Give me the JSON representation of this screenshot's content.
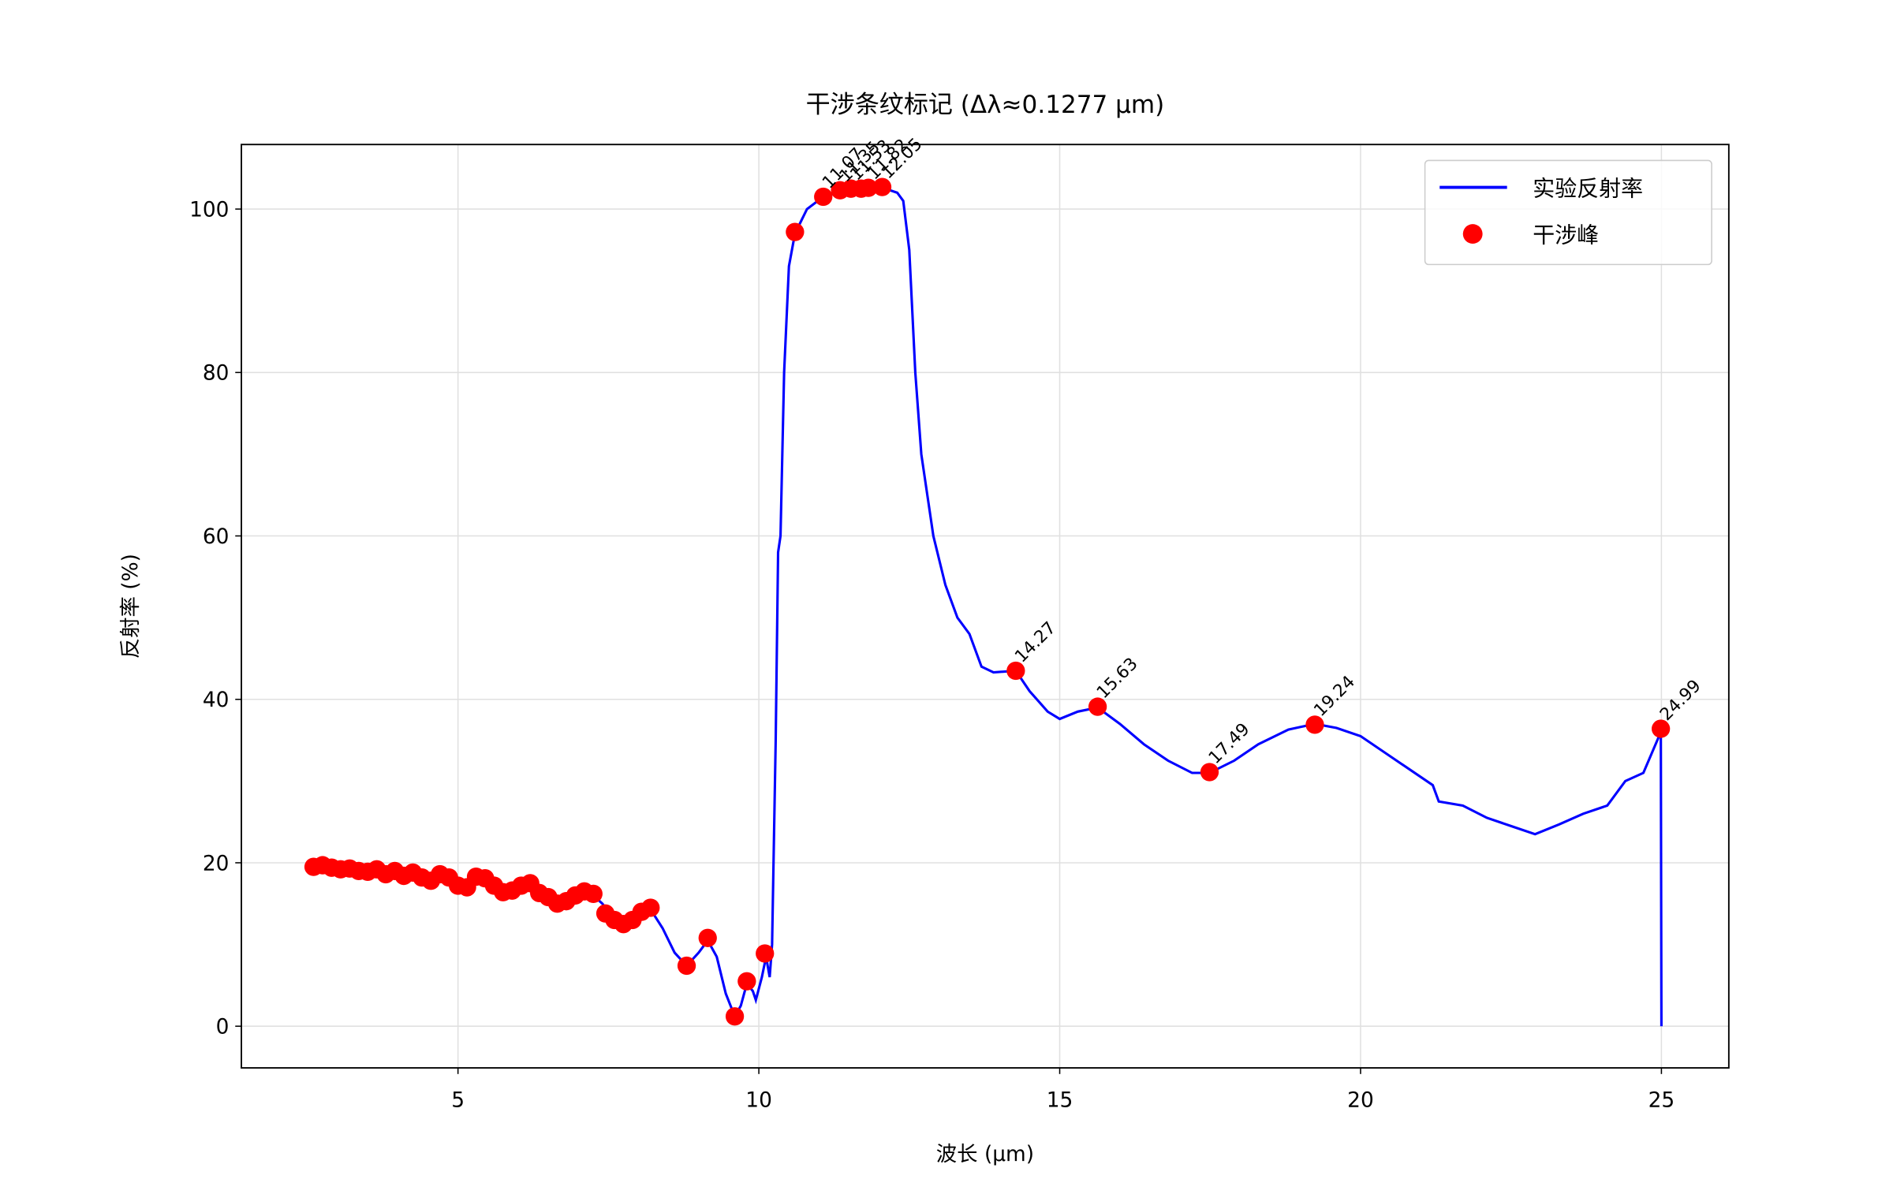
{
  "chart_data": {
    "type": "line",
    "title": "干涉条纹标记 (Δλ≈0.1277 μm)",
    "x_label": "波长 (μm)",
    "y_label": "反射率 (%)",
    "xlim": [
      1.4,
      26.12
    ],
    "ylim": [
      -5.1,
      107.9
    ],
    "xticks": [
      5,
      10,
      15,
      20,
      25
    ],
    "yticks": [
      0,
      20,
      40,
      60,
      80,
      100
    ],
    "grid": true,
    "legend": "upper right",
    "series": [
      {
        "name": "实验反射率",
        "type": "line",
        "color": "#0000ff",
        "x": [
          2.6,
          2.7,
          2.8,
          2.9,
          3.0,
          3.2,
          3.4,
          3.6,
          3.8,
          4.0,
          4.2,
          4.4,
          4.6,
          4.8,
          5.0,
          5.2,
          5.4,
          5.6,
          5.8,
          6.0,
          6.2,
          6.4,
          6.6,
          6.8,
          7.0,
          7.2,
          7.4,
          7.6,
          7.8,
          8.0,
          8.2,
          8.4,
          8.6,
          8.8,
          9.0,
          9.15,
          9.3,
          9.45,
          9.6,
          9.7,
          9.8,
          9.9,
          9.95,
          10.05,
          10.12,
          10.18,
          10.22,
          10.28,
          10.32,
          10.36,
          10.42,
          10.5,
          10.6,
          10.8,
          11.07,
          11.3,
          11.6,
          11.9,
          12.1,
          12.3,
          12.4,
          12.5,
          12.6,
          12.7,
          12.9,
          13.1,
          13.3,
          13.5,
          13.7,
          13.9,
          14.27,
          14.5,
          14.8,
          15.0,
          15.3,
          15.63,
          16.0,
          16.4,
          16.8,
          17.2,
          17.49,
          17.9,
          18.3,
          18.8,
          19.24,
          19.6,
          20.0,
          20.4,
          20.8,
          21.2,
          21.3,
          21.7,
          22.1,
          22.5,
          22.9,
          23.3,
          23.7,
          24.1,
          24.4,
          24.7,
          24.99,
          25.0
        ],
        "values": [
          19.5,
          19.0,
          19.6,
          18.9,
          19.4,
          18.8,
          19.2,
          18.5,
          19.1,
          18.2,
          18.7,
          17.9,
          18.2,
          18.5,
          17.2,
          17.5,
          18.3,
          17.5,
          16.3,
          16.8,
          17.3,
          16.0,
          15.5,
          15.0,
          16.0,
          16.3,
          15.0,
          13.0,
          12.6,
          13.6,
          14.3,
          12.0,
          9.0,
          7.4,
          9.0,
          10.5,
          8.5,
          4.0,
          1.2,
          2.5,
          5.2,
          4.3,
          3.2,
          6.0,
          8.5,
          6.0,
          10.0,
          35,
          58,
          60,
          80,
          93,
          97,
          100,
          101.5,
          102,
          102.3,
          102.4,
          102.5,
          102,
          101,
          95,
          80,
          70,
          60,
          54,
          50,
          48,
          44,
          43.3,
          43.5,
          41,
          38.5,
          37.6,
          38.5,
          39,
          37,
          34.5,
          32.5,
          31,
          31,
          32.5,
          34.5,
          36.3,
          37,
          36.5,
          35.5,
          33.5,
          31.5,
          29.5,
          27.5,
          27,
          25.5,
          24.5,
          23.5,
          24.7,
          26,
          27,
          30,
          31,
          36,
          0
        ]
      },
      {
        "name": "干涉峰",
        "type": "scatter",
        "color": "#ff0000",
        "x": [
          2.6,
          2.75,
          2.9,
          3.05,
          3.2,
          3.35,
          3.5,
          3.65,
          3.8,
          3.95,
          4.1,
          4.25,
          4.4,
          4.55,
          4.7,
          4.85,
          5.0,
          5.15,
          5.3,
          5.45,
          5.6,
          5.75,
          5.9,
          6.05,
          6.2,
          6.35,
          6.5,
          6.65,
          6.8,
          6.95,
          7.1,
          7.25,
          7.45,
          7.6,
          7.75,
          7.9,
          8.05,
          8.2,
          8.8,
          9.15,
          9.6,
          9.8,
          10.1,
          10.6,
          11.07,
          11.35,
          11.53,
          11.7,
          11.82,
          12.05,
          14.27,
          15.63,
          17.49,
          19.24,
          24.99
        ],
        "values": [
          19.5,
          19.7,
          19.4,
          19.2,
          19.3,
          19.0,
          18.9,
          19.2,
          18.6,
          19.0,
          18.4,
          18.8,
          18.2,
          17.8,
          18.6,
          18.2,
          17.2,
          17.0,
          18.3,
          18.1,
          17.2,
          16.4,
          16.6,
          17.2,
          17.5,
          16.3,
          15.8,
          15.0,
          15.3,
          16.0,
          16.5,
          16.2,
          13.8,
          13.0,
          12.5,
          13.0,
          14.0,
          14.5,
          7.4,
          10.8,
          1.2,
          5.5,
          8.9,
          97.2,
          101.5,
          102.3,
          102.5,
          102.5,
          102.6,
          102.7,
          43.5,
          39.1,
          31.1,
          36.9,
          36.4
        ]
      }
    ],
    "annotations": [
      {
        "text": "11.07",
        "x": 11.07,
        "y": 101.5
      },
      {
        "text": "11.35",
        "x": 11.35,
        "y": 102.3
      },
      {
        "text": "11.53",
        "x": 11.53,
        "y": 102.5
      },
      {
        "text": "11.82",
        "x": 11.82,
        "y": 102.6
      },
      {
        "text": "12.05",
        "x": 12.05,
        "y": 102.7
      },
      {
        "text": "14.27",
        "x": 14.27,
        "y": 43.5
      },
      {
        "text": "15.63",
        "x": 15.63,
        "y": 39.1
      },
      {
        "text": "17.49",
        "x": 17.49,
        "y": 31.1
      },
      {
        "text": "19.24",
        "x": 19.24,
        "y": 36.9
      },
      {
        "text": "24.99",
        "x": 24.99,
        "y": 36.4
      }
    ]
  }
}
